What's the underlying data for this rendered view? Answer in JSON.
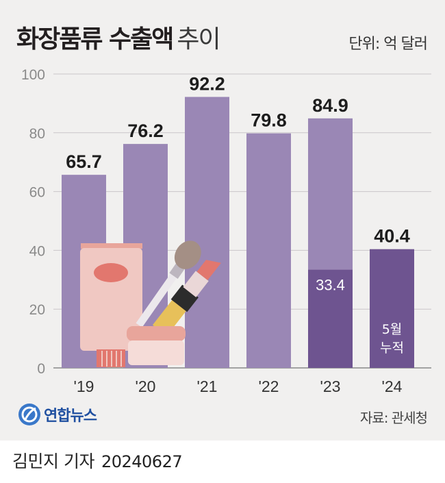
{
  "header": {
    "title_main": "화장품류 수출액",
    "title_sub": "추이",
    "unit": "단위: 억 달러"
  },
  "footer": {
    "logo_text": "연합뉴스",
    "source": "자료: 관세청",
    "reporter": "김민지 기자",
    "date": "20240627"
  },
  "colors": {
    "bar_light": "#9a87b5",
    "bar_dark": "#6e5490",
    "cream_tube": "#f0c8c2",
    "tube_cap": "#e2776e"
  },
  "chart_data": {
    "type": "bar",
    "categories": [
      "'19",
      "'20",
      "'21",
      "'22",
      "'23",
      "'24"
    ],
    "values": [
      65.7,
      76.2,
      92.2,
      79.8,
      84.9,
      40.4
    ],
    "value_labels": [
      "65.7",
      "76.2",
      "92.2",
      "79.8",
      "84.9",
      "40.4"
    ],
    "partial": {
      "category": "'23",
      "value": 33.4,
      "label": "33.4"
    },
    "annotations": [
      {
        "category": "'24",
        "text_line1": "5월",
        "text_line2": "누적"
      }
    ],
    "ylim": [
      0,
      100
    ],
    "yticks": [
      0,
      20,
      40,
      60,
      80,
      100
    ],
    "grid": true
  }
}
